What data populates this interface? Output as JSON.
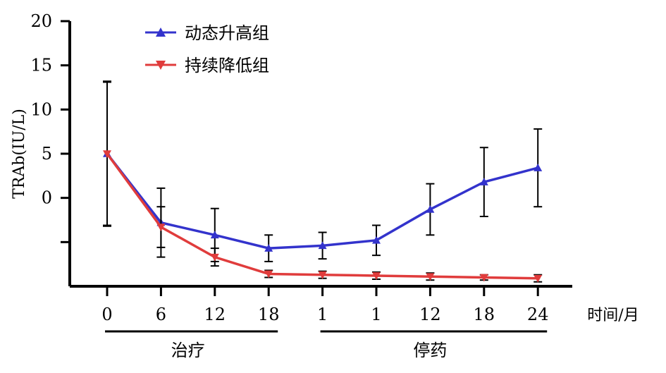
{
  "chart_data": {
    "type": "line",
    "xlabel": "时间/月",
    "ylabel": "TRAb(IU/L)",
    "categories": [
      "0",
      "6",
      "12",
      "18",
      "1",
      "1",
      "12",
      "18",
      "24"
    ],
    "y_ticks": [
      {
        "value": 20,
        "label": "20"
      },
      {
        "value": 15,
        "label": "15"
      },
      {
        "value": 10,
        "label": "10"
      },
      {
        "value": 5,
        "label": "5"
      },
      {
        "value": 0,
        "label": "0"
      },
      {
        "value": -5,
        "label": ""
      }
    ],
    "ylim": [
      -10,
      20
    ],
    "groups": [
      {
        "label": "治疗",
        "from": 0,
        "to": 3
      },
      {
        "label": "停药",
        "from": 4,
        "to": 8
      }
    ],
    "legend_position": "top-left",
    "grid": false,
    "series": [
      {
        "name": "动态升高组",
        "color": "#3333cc",
        "marker": "triangle-up",
        "values": [
          5.0,
          -2.8,
          -4.2,
          -5.7,
          -5.4,
          -4.8,
          -1.3,
          1.8,
          3.4
        ],
        "error": [
          8.2,
          3.9,
          3.0,
          1.5,
          1.5,
          1.7,
          2.9,
          3.9,
          4.4
        ]
      },
      {
        "name": "持续降低组",
        "color": "#e03c3c",
        "marker": "triangle-down",
        "values": [
          5.0,
          -3.3,
          -6.7,
          -8.6,
          -8.7,
          -8.8,
          -8.9,
          -9.0,
          -9.1
        ],
        "error": [
          8.1,
          2.3,
          1.0,
          0.4,
          0.4,
          0.4,
          0.4,
          0.3,
          0.4
        ]
      }
    ]
  }
}
